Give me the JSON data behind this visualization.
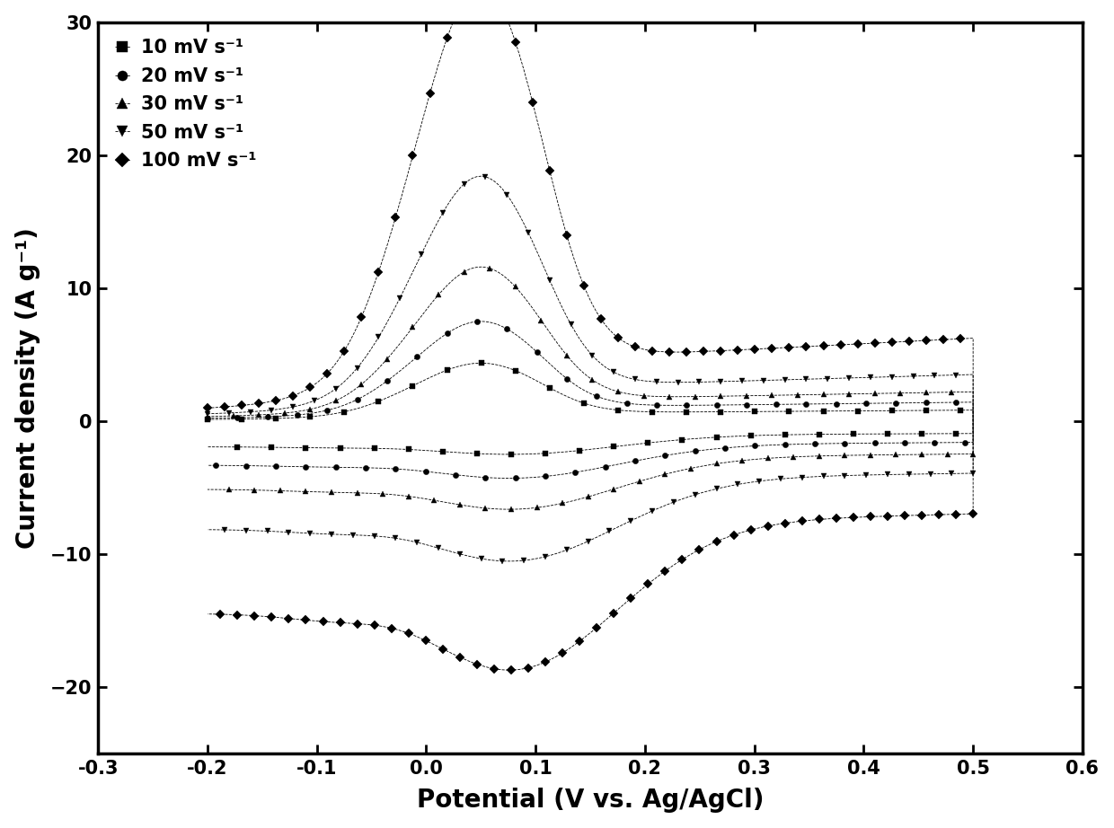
{
  "title": "",
  "xlabel": "Potential (V vs. Ag/AgCl)",
  "ylabel": "Current density (A g⁻¹)",
  "xlim": [
    -0.3,
    0.6
  ],
  "ylim": [
    -25,
    30
  ],
  "xticks": [
    -0.3,
    -0.2,
    -0.1,
    0.0,
    0.1,
    0.2,
    0.3,
    0.4,
    0.5,
    0.6
  ],
  "yticks": [
    -20,
    -10,
    0,
    10,
    20,
    30
  ],
  "series": [
    {
      "label": "10 mV s⁻¹",
      "marker": "s",
      "markersize": 4.5
    },
    {
      "label": "20 mV s⁻¹",
      "marker": "o",
      "markersize": 4.5
    },
    {
      "label": "30 mV s⁻¹",
      "marker": "^",
      "markersize": 5.0
    },
    {
      "label": "50 mV s⁻¹",
      "marker": "v",
      "markersize": 5.0
    },
    {
      "label": "100 mV s⁻¹",
      "marker": "D",
      "markersize": 5.0
    }
  ],
  "scales": [
    3.2,
    5.5,
    8.5,
    13.5,
    24.0
  ],
  "background_color": "#ffffff",
  "legend_fontsize": 15,
  "axis_label_fontsize": 20,
  "tick_fontsize": 15
}
